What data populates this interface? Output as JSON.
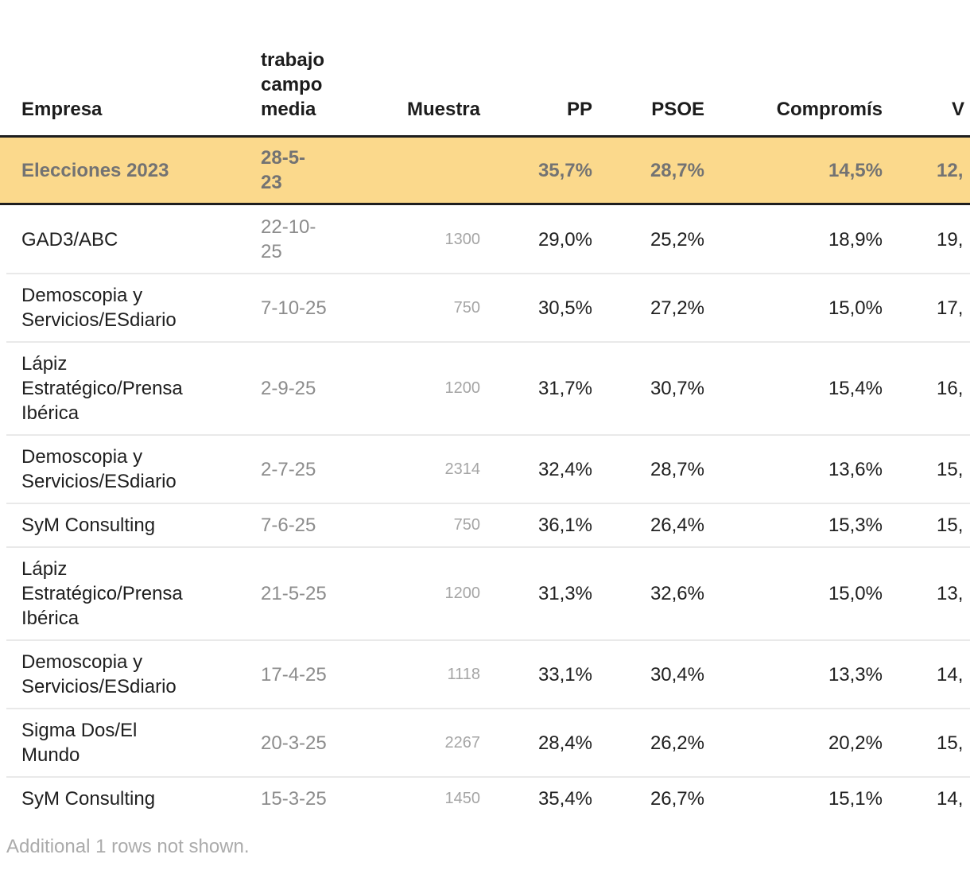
{
  "table": {
    "header": {
      "empresa": "Empresa",
      "fecha": "trabajo\ncampo\nmedia",
      "muestra": "Muestra",
      "pp": "PP",
      "psoe": "PSOE",
      "compromis": "Compromís",
      "vox": "V"
    },
    "rows": [
      {
        "empresa": "Elecciones 2023",
        "fecha": "28-5-\n23",
        "muestra": "",
        "pp": "35,7%",
        "psoe": "28,7%",
        "compromis": "14,5%",
        "vox": "12,",
        "highlight": true
      },
      {
        "empresa": "GAD3/ABC",
        "fecha": "22-10-\n25",
        "muestra": "1300",
        "pp": "29,0%",
        "psoe": "25,2%",
        "compromis": "18,9%",
        "vox": "19,"
      },
      {
        "empresa": "Demoscopia y\nServicios/ESdiario",
        "fecha": "7-10-25",
        "muestra": "750",
        "pp": "30,5%",
        "psoe": "27,2%",
        "compromis": "15,0%",
        "vox": "17,"
      },
      {
        "empresa": "Lápiz\nEstratégico/Prensa\nIbérica",
        "fecha": "2-9-25",
        "muestra": "1200",
        "pp": "31,7%",
        "psoe": "30,7%",
        "compromis": "15,4%",
        "vox": "16,"
      },
      {
        "empresa": "Demoscopia y\nServicios/ESdiario",
        "fecha": "2-7-25",
        "muestra": "2314",
        "pp": "32,4%",
        "psoe": "28,7%",
        "compromis": "13,6%",
        "vox": "15,"
      },
      {
        "empresa": "SyM Consulting",
        "fecha": "7-6-25",
        "muestra": "750",
        "pp": "36,1%",
        "psoe": "26,4%",
        "compromis": "15,3%",
        "vox": "15,"
      },
      {
        "empresa": "Lápiz\nEstratégico/Prensa\nIbérica",
        "fecha": "21-5-25",
        "muestra": "1200",
        "pp": "31,3%",
        "psoe": "32,6%",
        "compromis": "15,0%",
        "vox": "13,"
      },
      {
        "empresa": "Demoscopia y\nServicios/ESdiario",
        "fecha": "17-4-25",
        "muestra": "1118",
        "pp": "33,1%",
        "psoe": "30,4%",
        "compromis": "13,3%",
        "vox": "14,"
      },
      {
        "empresa": "Sigma Dos/El\nMundo",
        "fecha": "20-3-25",
        "muestra": "2267",
        "pp": "28,4%",
        "psoe": "26,2%",
        "compromis": "20,2%",
        "vox": "15,"
      },
      {
        "empresa": "SyM Consulting",
        "fecha": "15-3-25",
        "muestra": "1450",
        "pp": "35,4%",
        "psoe": "26,7%",
        "compromis": "15,1%",
        "vox": "14,"
      }
    ],
    "footer": "Additional 1 rows not shown."
  },
  "colors": {
    "highlight_row_bg": "#fbd98c",
    "highlight_border": "#1e1e1e",
    "row_divider": "#e9e9e9",
    "body_text": "#202020",
    "date_text": "#8c8c8c",
    "sample_text": "#a5a5a5",
    "footer_text": "#ababab"
  }
}
